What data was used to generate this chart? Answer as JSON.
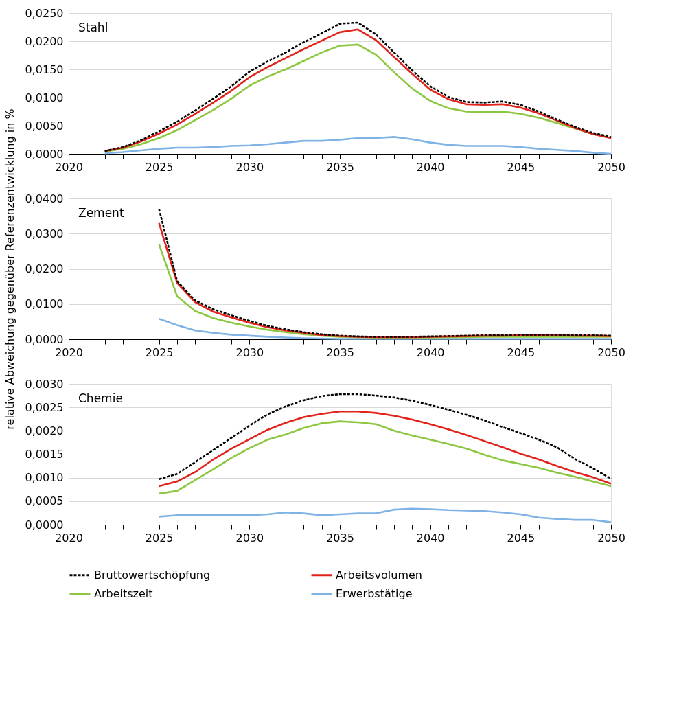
{
  "chart_data": [
    {
      "type": "line",
      "title": "Stahl",
      "grid": "y",
      "legend": false,
      "x": [
        2022,
        2023,
        2024,
        2025,
        2026,
        2027,
        2028,
        2029,
        2030,
        2031,
        2032,
        2033,
        2034,
        2035,
        2036,
        2037,
        2038,
        2039,
        2040,
        2041,
        2042,
        2043,
        2044,
        2045,
        2046,
        2047,
        2048,
        2049,
        2050
      ],
      "xlim": [
        2020,
        2050
      ],
      "xticks": [
        2020,
        {
          "value": 2021,
          "label": null
        },
        {
          "value": 2022,
          "label": null
        },
        {
          "value": 2023,
          "label": null
        },
        {
          "value": 2024,
          "label": null
        },
        2025,
        {
          "value": 2026,
          "label": null
        },
        {
          "value": 2027,
          "label": null
        },
        {
          "value": 2028,
          "label": null
        },
        {
          "value": 2029,
          "label": null
        },
        2030,
        {
          "value": 2031,
          "label": null
        },
        {
          "value": 2032,
          "label": null
        },
        {
          "value": 2033,
          "label": null
        },
        {
          "value": 2034,
          "label": null
        },
        2035,
        {
          "value": 2036,
          "label": null
        },
        {
          "value": 2037,
          "label": null
        },
        {
          "value": 2038,
          "label": null
        },
        {
          "value": 2039,
          "label": null
        },
        2040,
        {
          "value": 2041,
          "label": null
        },
        {
          "value": 2042,
          "label": null
        },
        {
          "value": 2043,
          "label": null
        },
        {
          "value": 2044,
          "label": null
        },
        2045,
        {
          "value": 2046,
          "label": null
        },
        {
          "value": 2047,
          "label": null
        },
        {
          "value": 2048,
          "label": null
        },
        {
          "value": 2049,
          "label": null
        },
        2050
      ],
      "ylim": [
        0,
        0.025
      ],
      "yticks": [
        {
          "value": 0,
          "label": "0,0000"
        },
        {
          "value": 0.005,
          "label": "0,0050"
        },
        {
          "value": 0.01,
          "label": "0,0100"
        },
        {
          "value": 0.015,
          "label": "0,0150"
        },
        {
          "value": 0.02,
          "label": "0,0200"
        },
        {
          "value": 0.025,
          "label": "0,0250"
        }
      ],
      "series": [
        {
          "color": "#000000",
          "line_style": "dashed",
          "values": [
            0.0005,
            0.0012,
            0.0024,
            0.004,
            0.0057,
            0.0077,
            0.0098,
            0.012,
            0.0146,
            0.0164,
            0.018,
            0.0198,
            0.0214,
            0.0231,
            0.0233,
            0.0212,
            0.018,
            0.0148,
            0.012,
            0.0101,
            0.0092,
            0.0091,
            0.0093,
            0.0087,
            0.0075,
            0.0061,
            0.0048,
            0.0037,
            0.003
          ]
        },
        {
          "color": "#e2231a",
          "line_style": "solid",
          "values": [
            0.0005,
            0.0011,
            0.0022,
            0.0036,
            0.0052,
            0.0071,
            0.0091,
            0.0112,
            0.0136,
            0.0154,
            0.017,
            0.0186,
            0.0201,
            0.0216,
            0.0221,
            0.0202,
            0.0172,
            0.0142,
            0.0114,
            0.0097,
            0.0088,
            0.0087,
            0.0088,
            0.0082,
            0.0072,
            0.0059,
            0.0046,
            0.0035,
            0.0028
          ]
        },
        {
          "color": "#8dc63f",
          "line_style": "solid",
          "values": [
            0.0004,
            0.0009,
            0.0017,
            0.0028,
            0.0042,
            0.006,
            0.0078,
            0.0098,
            0.0121,
            0.0137,
            0.015,
            0.0165,
            0.018,
            0.0192,
            0.0194,
            0.0176,
            0.0145,
            0.0116,
            0.0094,
            0.0081,
            0.0075,
            0.0074,
            0.0075,
            0.0071,
            0.0064,
            0.0055,
            0.0045,
            0.0035,
            0.0028
          ]
        },
        {
          "color": "#7fb2e5",
          "line_style": "solid",
          "values": [
            0.0001,
            0.0003,
            0.0006,
            0.0009,
            0.0011,
            0.0011,
            0.0012,
            0.0014,
            0.0015,
            0.0017,
            0.002,
            0.0023,
            0.0023,
            0.0025,
            0.0028,
            0.0028,
            0.003,
            0.0026,
            0.002,
            0.0016,
            0.0014,
            0.0014,
            0.0014,
            0.0012,
            0.0009,
            0.0007,
            0.0005,
            0.0002,
            0.0
          ]
        }
      ]
    },
    {
      "type": "line",
      "title": "Zement",
      "ylabel": "relative Abweichung gegenüber Referenzentwicklung in %",
      "grid": "y",
      "legend": false,
      "x": [
        2025,
        2026,
        2027,
        2028,
        2029,
        2030,
        2031,
        2032,
        2033,
        2034,
        2035,
        2036,
        2037,
        2038,
        2039,
        2040,
        2041,
        2042,
        2043,
        2044,
        2045,
        2046,
        2047,
        2048,
        2049,
        2050
      ],
      "xlim": [
        2020,
        2050
      ],
      "xticks": [
        2020,
        {
          "value": 2021,
          "label": null
        },
        {
          "value": 2022,
          "label": null
        },
        {
          "value": 2023,
          "label": null
        },
        {
          "value": 2024,
          "label": null
        },
        2025,
        {
          "value": 2026,
          "label": null
        },
        {
          "value": 2027,
          "label": null
        },
        {
          "value": 2028,
          "label": null
        },
        {
          "value": 2029,
          "label": null
        },
        2030,
        {
          "value": 2031,
          "label": null
        },
        {
          "value": 2032,
          "label": null
        },
        {
          "value": 2033,
          "label": null
        },
        {
          "value": 2034,
          "label": null
        },
        2035,
        {
          "value": 2036,
          "label": null
        },
        {
          "value": 2037,
          "label": null
        },
        {
          "value": 2038,
          "label": null
        },
        {
          "value": 2039,
          "label": null
        },
        2040,
        {
          "value": 2041,
          "label": null
        },
        {
          "value": 2042,
          "label": null
        },
        {
          "value": 2043,
          "label": null
        },
        {
          "value": 2044,
          "label": null
        },
        2045,
        {
          "value": 2046,
          "label": null
        },
        {
          "value": 2047,
          "label": null
        },
        {
          "value": 2048,
          "label": null
        },
        {
          "value": 2049,
          "label": null
        },
        2050
      ],
      "ylim": [
        0,
        0.04
      ],
      "yticks": [
        {
          "value": 0,
          "label": "0,0000"
        },
        {
          "value": 0.01,
          "label": "0,0100"
        },
        {
          "value": 0.02,
          "label": "0,0200"
        },
        {
          "value": 0.03,
          "label": "0,0300"
        },
        {
          "value": 0.04,
          "label": "0,0400"
        }
      ],
      "series": [
        {
          "color": "#000000",
          "line_style": "dashed",
          "values": [
            0.037,
            0.0165,
            0.011,
            0.0085,
            0.0068,
            0.0052,
            0.0038,
            0.0028,
            0.002,
            0.0014,
            0.001,
            0.0008,
            0.0007,
            0.0007,
            0.0007,
            0.0008,
            0.0009,
            0.001,
            0.0011,
            0.0012,
            0.0013,
            0.0013,
            0.0012,
            0.0012,
            0.0011,
            0.001
          ]
        },
        {
          "color": "#e2231a",
          "line_style": "solid",
          "values": [
            0.033,
            0.016,
            0.0105,
            0.0078,
            0.0062,
            0.0047,
            0.0034,
            0.0025,
            0.0018,
            0.0012,
            0.0009,
            0.0007,
            0.0006,
            0.0006,
            0.0006,
            0.0007,
            0.0008,
            0.0009,
            0.001,
            0.001,
            0.0011,
            0.0011,
            0.0011,
            0.001,
            0.001,
            0.0009
          ]
        },
        {
          "color": "#8dc63f",
          "line_style": "solid",
          "values": [
            0.027,
            0.0122,
            0.008,
            0.006,
            0.0047,
            0.0036,
            0.0027,
            0.002,
            0.0014,
            0.001,
            0.0007,
            0.0006,
            0.0005,
            0.0005,
            0.0005,
            0.0005,
            0.0006,
            0.0006,
            0.0007,
            0.0007,
            0.0007,
            0.0007,
            0.0007,
            0.0007,
            0.0007,
            0.0007
          ]
        },
        {
          "color": "#7fb2e5",
          "line_style": "solid",
          "values": [
            0.0058,
            0.004,
            0.0025,
            0.0018,
            0.0013,
            0.001,
            0.0007,
            0.0005,
            0.0003,
            0.0002,
            0.0001,
            0.0001,
            0.0001,
            0.0001,
            0.0001,
            0.0001,
            0.0001,
            0.0001,
            0.0001,
            0.0001,
            0.0001,
            0.0001,
            0.0001,
            0.0001,
            0.0001,
            0.0001
          ]
        }
      ]
    },
    {
      "type": "line",
      "title": "Chemie",
      "grid": "y",
      "legend": "bottom",
      "x": [
        2025,
        2026,
        2027,
        2028,
        2029,
        2030,
        2031,
        2032,
        2033,
        2034,
        2035,
        2036,
        2037,
        2038,
        2039,
        2040,
        2041,
        2042,
        2043,
        2044,
        2045,
        2046,
        2047,
        2048,
        2049,
        2050
      ],
      "xlim": [
        2020,
        2050
      ],
      "xticks": [
        2020,
        {
          "value": 2021,
          "label": null
        },
        {
          "value": 2022,
          "label": null
        },
        {
          "value": 2023,
          "label": null
        },
        {
          "value": 2024,
          "label": null
        },
        2025,
        {
          "value": 2026,
          "label": null
        },
        {
          "value": 2027,
          "label": null
        },
        {
          "value": 2028,
          "label": null
        },
        {
          "value": 2029,
          "label": null
        },
        2030,
        {
          "value": 2031,
          "label": null
        },
        {
          "value": 2032,
          "label": null
        },
        {
          "value": 2033,
          "label": null
        },
        {
          "value": 2034,
          "label": null
        },
        2035,
        {
          "value": 2036,
          "label": null
        },
        {
          "value": 2037,
          "label": null
        },
        {
          "value": 2038,
          "label": null
        },
        {
          "value": 2039,
          "label": null
        },
        2040,
        {
          "value": 2041,
          "label": null
        },
        {
          "value": 2042,
          "label": null
        },
        {
          "value": 2043,
          "label": null
        },
        {
          "value": 2044,
          "label": null
        },
        2045,
        {
          "value": 2046,
          "label": null
        },
        {
          "value": 2047,
          "label": null
        },
        {
          "value": 2048,
          "label": null
        },
        {
          "value": 2049,
          "label": null
        },
        2050
      ],
      "ylim": [
        0,
        0.003
      ],
      "yticks": [
        {
          "value": 0,
          "label": "0,0000"
        },
        {
          "value": 0.0005,
          "label": "0,0005"
        },
        {
          "value": 0.001,
          "label": "0,0010"
        },
        {
          "value": 0.0015,
          "label": "0,0015"
        },
        {
          "value": 0.002,
          "label": "0,0020"
        },
        {
          "value": 0.0025,
          "label": "0,0025"
        },
        {
          "value": 0.003,
          "label": "0,0030"
        }
      ],
      "series": [
        {
          "name": "Bruttowertschöpfung",
          "color": "#000000",
          "line_style": "dashed",
          "values": [
            0.00097,
            0.00108,
            0.00133,
            0.00159,
            0.00185,
            0.00211,
            0.00235,
            0.00252,
            0.00265,
            0.00274,
            0.00278,
            0.00278,
            0.00275,
            0.00271,
            0.00264,
            0.00255,
            0.00245,
            0.00234,
            0.00222,
            0.00208,
            0.00195,
            0.00181,
            0.00165,
            0.0014,
            0.0012,
            0.00098
          ]
        },
        {
          "name": "Arbeitsvolumen",
          "color": "#e2231a",
          "line_style": "solid",
          "values": [
            0.00082,
            0.00092,
            0.00112,
            0.00139,
            0.00162,
            0.00182,
            0.00202,
            0.00217,
            0.00229,
            0.00236,
            0.00241,
            0.00241,
            0.00238,
            0.00232,
            0.00224,
            0.00214,
            0.00203,
            0.00191,
            0.00178,
            0.00165,
            0.00151,
            0.00139,
            0.00125,
            0.00112,
            0.00101,
            0.00087
          ]
        },
        {
          "name": "Arbeitszeit",
          "color": "#8dc63f",
          "line_style": "solid",
          "values": [
            0.00066,
            0.00072,
            0.00095,
            0.00118,
            0.00142,
            0.00163,
            0.00181,
            0.00192,
            0.00206,
            0.00216,
            0.0022,
            0.00218,
            0.00214,
            0.002,
            0.0019,
            0.00181,
            0.00172,
            0.00162,
            0.00149,
            0.00137,
            0.00129,
            0.00121,
            0.00111,
            0.00102,
            0.00092,
            0.00082
          ]
        },
        {
          "name": "Erwerbstätige",
          "color": "#7fb2e5",
          "line_style": "solid",
          "values": [
            0.00017,
            0.0002,
            0.0002,
            0.0002,
            0.0002,
            0.0002,
            0.00022,
            0.00026,
            0.00024,
            0.0002,
            0.00022,
            0.00024,
            0.00024,
            0.00032,
            0.00034,
            0.00033,
            0.00031,
            0.0003,
            0.00029,
            0.00026,
            0.00022,
            0.00015,
            0.00012,
            0.0001,
            0.0001,
            5e-05
          ]
        }
      ]
    }
  ]
}
